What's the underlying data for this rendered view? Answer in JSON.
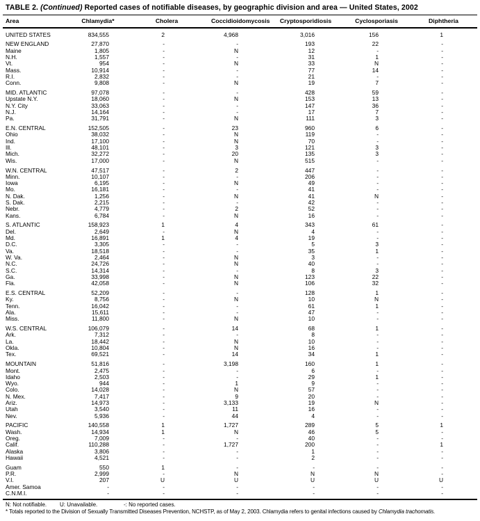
{
  "title": {
    "label": "TABLE 2.",
    "continued": "(Continued)",
    "text": "Reported cases of notifiable diseases, by geographic division and area — United States, 2002"
  },
  "table": {
    "columns": [
      "Area",
      "Chlamydia*",
      "Cholera",
      "Coccidioidomycosis",
      "Cryptosporidiosis",
      "Cyclosporiasis",
      "Diphtheria"
    ],
    "groups": [
      {
        "rows": [
          [
            "UNITED STATES",
            "834,555",
            "2",
            "4,968",
            "3,016",
            "156",
            "1"
          ]
        ]
      },
      {
        "rows": [
          [
            "NEW ENGLAND",
            "27,870",
            "-",
            "-",
            "193",
            "22",
            "-"
          ],
          [
            "Maine",
            "1,805",
            "-",
            "N",
            "12",
            "-",
            "-"
          ],
          [
            "N.H.",
            "1,557",
            "-",
            "-",
            "31",
            "1",
            "-"
          ],
          [
            "Vt.",
            "954",
            "-",
            "N",
            "33",
            "N",
            "-"
          ],
          [
            "Mass.",
            "10,914",
            "-",
            "-",
            "77",
            "14",
            "-"
          ],
          [
            "R.I.",
            "2,832",
            "-",
            "-",
            "21",
            "-",
            "-"
          ],
          [
            "Conn.",
            "9,808",
            "-",
            "N",
            "19",
            "7",
            "-"
          ]
        ]
      },
      {
        "rows": [
          [
            "MID. ATLANTIC",
            "97,078",
            "-",
            "-",
            "428",
            "59",
            "-"
          ],
          [
            "Upstate N.Y.",
            "18,060",
            "-",
            "N",
            "153",
            "13",
            "-"
          ],
          [
            "N.Y. City",
            "33,063",
            "-",
            "-",
            "147",
            "36",
            "-"
          ],
          [
            "N.J.",
            "14,164",
            "-",
            "-",
            "17",
            "7",
            "-"
          ],
          [
            "Pa.",
            "31,791",
            "-",
            "N",
            "111",
            "3",
            "-"
          ]
        ]
      },
      {
        "rows": [
          [
            "E.N. CENTRAL",
            "152,505",
            "-",
            "23",
            "960",
            "6",
            "-"
          ],
          [
            "Ohio",
            "38,032",
            "-",
            "N",
            "119",
            "-",
            "-"
          ],
          [
            "Ind.",
            "17,100",
            "-",
            "N",
            "70",
            "-",
            "-"
          ],
          [
            "Ill.",
            "48,101",
            "-",
            "3",
            "121",
            "3",
            "-"
          ],
          [
            "Mich.",
            "32,272",
            "-",
            "20",
            "135",
            "3",
            "-"
          ],
          [
            "Wis.",
            "17,000",
            "-",
            "N",
            "515",
            "-",
            "-"
          ]
        ]
      },
      {
        "rows": [
          [
            "W.N. CENTRAL",
            "47,517",
            "-",
            "2",
            "447",
            "-",
            "-"
          ],
          [
            "Minn.",
            "10,107",
            "-",
            "-",
            "206",
            "-",
            "-"
          ],
          [
            "Iowa",
            "6,195",
            "-",
            "N",
            "49",
            "-",
            "-"
          ],
          [
            "Mo.",
            "16,181",
            "-",
            "-",
            "41",
            "-",
            "-"
          ],
          [
            "N. Dak.",
            "1,256",
            "-",
            "N",
            "41",
            "N",
            "-"
          ],
          [
            "S. Dak.",
            "2,215",
            "-",
            "-",
            "42",
            "-",
            "-"
          ],
          [
            "Nebr.",
            "4,779",
            "-",
            "2",
            "52",
            "-",
            "-"
          ],
          [
            "Kans.",
            "6,784",
            "-",
            "N",
            "16",
            "-",
            "-"
          ]
        ]
      },
      {
        "rows": [
          [
            "S. ATLANTIC",
            "158,923",
            "1",
            "4",
            "343",
            "61",
            "-"
          ],
          [
            "Del.",
            "2,649",
            "-",
            "N",
            "4",
            "-",
            "-"
          ],
          [
            "Md.",
            "16,891",
            "1",
            "4",
            "19",
            "-",
            "-"
          ],
          [
            "D.C.",
            "3,305",
            "-",
            "-",
            "5",
            "3",
            "-"
          ],
          [
            "Va.",
            "18,518",
            "-",
            "-",
            "35",
            "1",
            "-"
          ],
          [
            "W. Va.",
            "2,464",
            "-",
            "N",
            "3",
            "-",
            "-"
          ],
          [
            "N.C.",
            "24,726",
            "-",
            "N",
            "40",
            "-",
            "-"
          ],
          [
            "S.C.",
            "14,314",
            "-",
            "-",
            "8",
            "3",
            "-"
          ],
          [
            "Ga.",
            "33,998",
            "-",
            "N",
            "123",
            "22",
            "-"
          ],
          [
            "Fla.",
            "42,058",
            "-",
            "N",
            "106",
            "32",
            "-"
          ]
        ]
      },
      {
        "rows": [
          [
            "E.S. CENTRAL",
            "52,209",
            "-",
            "-",
            "128",
            "1",
            "-"
          ],
          [
            "Ky.",
            "8,756",
            "-",
            "N",
            "10",
            "N",
            "-"
          ],
          [
            "Tenn.",
            "16,042",
            "-",
            "-",
            "61",
            "1",
            "-"
          ],
          [
            "Ala.",
            "15,611",
            "-",
            "-",
            "47",
            "-",
            "-"
          ],
          [
            "Miss.",
            "11,800",
            "-",
            "N",
            "10",
            "-",
            "-"
          ]
        ]
      },
      {
        "rows": [
          [
            "W.S. CENTRAL",
            "106,079",
            "-",
            "14",
            "68",
            "1",
            "-"
          ],
          [
            "Ark.",
            "7,312",
            "-",
            "-",
            "8",
            "-",
            "-"
          ],
          [
            "La.",
            "18,442",
            "-",
            "N",
            "10",
            "-",
            "-"
          ],
          [
            "Okla.",
            "10,804",
            "-",
            "N",
            "16",
            "-",
            "-"
          ],
          [
            "Tex.",
            "69,521",
            "-",
            "14",
            "34",
            "1",
            "-"
          ]
        ]
      },
      {
        "rows": [
          [
            "MOUNTAIN",
            "51,816",
            "-",
            "3,198",
            "160",
            "1",
            "-"
          ],
          [
            "Mont.",
            "2,475",
            "-",
            "-",
            "6",
            "-",
            "-"
          ],
          [
            "Idaho",
            "2,503",
            "-",
            "-",
            "29",
            "1",
            "-"
          ],
          [
            "Wyo.",
            "944",
            "-",
            "1",
            "9",
            "-",
            "-"
          ],
          [
            "Colo.",
            "14,028",
            "-",
            "N",
            "57",
            "-",
            "-"
          ],
          [
            "N. Mex.",
            "7,417",
            "-",
            "9",
            "20",
            "-",
            "-"
          ],
          [
            "Ariz.",
            "14,973",
            "-",
            "3,133",
            "19",
            "N",
            "-"
          ],
          [
            "Utah",
            "3,540",
            "-",
            "11",
            "16",
            "-",
            "-"
          ],
          [
            "Nev.",
            "5,936",
            "-",
            "44",
            "4",
            "-",
            "-"
          ]
        ]
      },
      {
        "rows": [
          [
            "PACIFIC",
            "140,558",
            "1",
            "1,727",
            "289",
            "5",
            "1"
          ],
          [
            "Wash.",
            "14,934",
            "1",
            "N",
            "46",
            "5",
            "-"
          ],
          [
            "Oreg.",
            "7,009",
            "-",
            "-",
            "40",
            "-",
            "-"
          ],
          [
            "Calif.",
            "110,288",
            "-",
            "1,727",
            "200",
            "-",
            "1"
          ],
          [
            "Alaska",
            "3,806",
            "-",
            "-",
            "1",
            "-",
            "-"
          ],
          [
            "Hawaii",
            "4,521",
            "-",
            "-",
            "2",
            "-",
            "-"
          ]
        ]
      },
      {
        "rows": [
          [
            "Guam",
            "550",
            "1",
            "-",
            "-",
            "-",
            "-"
          ],
          [
            "P.R.",
            "2,999",
            "-",
            "N",
            "N",
            "N",
            "-"
          ],
          [
            "V.I.",
            "207",
            "U",
            "U",
            "U",
            "U",
            "U"
          ],
          [
            "Amer. Samoa",
            "-",
            "-",
            "-",
            "-",
            "-",
            "-"
          ],
          [
            "C.N.M.I.",
            "-",
            "-",
            "-",
            "-",
            "-",
            "-"
          ]
        ]
      }
    ]
  },
  "footnotes": {
    "not_notifiable": "N: Not notifiable.",
    "unavailable": "U: Unavailable.",
    "no_cases": "-: No reported cases.",
    "star_text": "* Totals reported to the Division of Sexually Transmitted Diseases Prevention, NCHSTP, as of May 2, 2003. Chlamydia refers to genital infections caused by ",
    "star_italic": "Chlamydia trachomatis."
  }
}
